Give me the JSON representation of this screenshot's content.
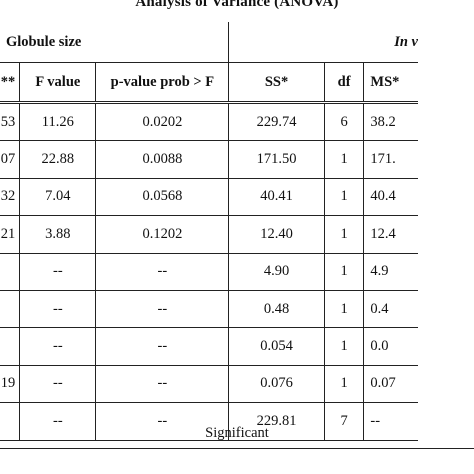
{
  "title": "Analysis of Variance (ANOVA)",
  "groups": {
    "left": "Globule size",
    "right": "In v"
  },
  "columns": [
    "**",
    "F value",
    "p-value prob > F",
    "SS*",
    "df",
    "MS*"
  ],
  "rows": [
    {
      "c0": "53",
      "f": "11.26",
      "p": "0.0202",
      "ss": "229.74",
      "df": "6",
      "ms": "38.2"
    },
    {
      "c0": "07",
      "f": "22.88",
      "p": "0.0088",
      "ss": "171.50",
      "df": "1",
      "ms": "171."
    },
    {
      "c0": "32",
      "f": "7.04",
      "p": "0.0568",
      "ss": "40.41",
      "df": "1",
      "ms": "40.4"
    },
    {
      "c0": "21",
      "f": "3.88",
      "p": "0.1202",
      "ss": "12.40",
      "df": "1",
      "ms": "12.4"
    },
    {
      "c0": "",
      "f": "--",
      "p": "--",
      "ss": "4.90",
      "df": "1",
      "ms": "4.9"
    },
    {
      "c0": "",
      "f": "--",
      "p": "--",
      "ss": "0.48",
      "df": "1",
      "ms": "0.4"
    },
    {
      "c0": "",
      "f": "--",
      "p": "--",
      "ss": "0.054",
      "df": "1",
      "ms": "0.0"
    },
    {
      "c0": "19",
      "f": "--",
      "p": "--",
      "ss": "0.076",
      "df": "1",
      "ms": "0.07"
    },
    {
      "c0": "",
      "f": "--",
      "p": "--",
      "ss": "229.81",
      "df": "7",
      "ms": "--"
    }
  ],
  "footnote": "Significant"
}
